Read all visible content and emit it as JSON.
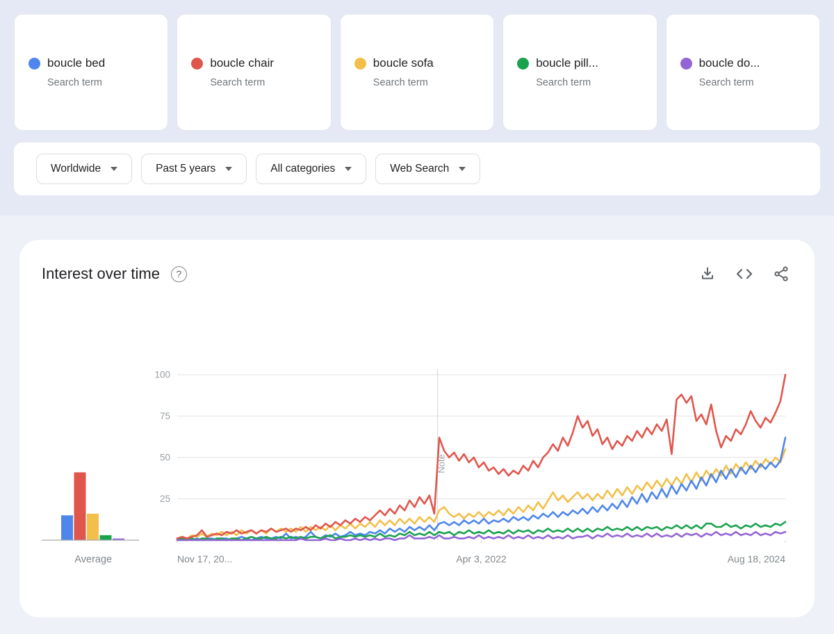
{
  "terms": {
    "cards": [
      {
        "label": "boucle bed",
        "sublabel": "Search term",
        "color": "#4e86ec"
      },
      {
        "label": "boucle chair",
        "sublabel": "Search term",
        "color": "#e0564d"
      },
      {
        "label": "boucle sofa",
        "sublabel": "Search term",
        "color": "#f2c04a"
      },
      {
        "label": "boucle pill...",
        "sublabel": "Search term",
        "color": "#1ba24f"
      },
      {
        "label": "boucle do...",
        "sublabel": "Search term",
        "color": "#9466d5"
      }
    ]
  },
  "filters": [
    {
      "label": "Worldwide"
    },
    {
      "label": "Past 5 years"
    },
    {
      "label": "All categories"
    },
    {
      "label": "Web Search"
    }
  ],
  "icons": {
    "help": "?"
  },
  "chart_data": {
    "type": "line",
    "title": "Interest over time",
    "x_axis": {
      "ticks": [
        "Nov 17, 20...",
        "Apr 3, 2022",
        "Aug 18, 2024"
      ]
    },
    "y_axis": {
      "ticks": [
        100,
        75,
        50,
        25
      ],
      "range": [
        0,
        100
      ],
      "grid": true
    },
    "note_annotation": {
      "x_fraction": 0.428,
      "label": "Note"
    },
    "average": {
      "label": "Average"
    },
    "series": [
      {
        "name": "boucle bed",
        "color": "#4e86ec",
        "average": 15,
        "values": [
          1,
          0,
          1,
          0,
          1,
          0,
          1,
          1,
          0,
          1,
          1,
          0,
          1,
          2,
          1,
          0,
          1,
          2,
          1,
          1,
          2,
          1,
          4,
          1,
          2,
          1,
          2,
          5,
          2,
          1,
          3,
          2,
          4,
          2,
          3,
          5,
          3,
          4,
          3,
          5,
          4,
          6,
          4,
          7,
          5,
          7,
          5,
          8,
          6,
          8,
          6,
          9,
          6,
          10,
          11,
          9,
          11,
          9,
          12,
          10,
          12,
          10,
          13,
          10,
          12,
          11,
          13,
          11,
          14,
          12,
          14,
          12,
          15,
          13,
          16,
          14,
          17,
          14,
          17,
          15,
          18,
          16,
          19,
          16,
          20,
          17,
          21,
          18,
          22,
          19,
          24,
          20,
          26,
          22,
          28,
          23,
          29,
          25,
          31,
          26,
          33,
          28,
          34,
          30,
          36,
          31,
          38,
          33,
          40,
          35,
          42,
          37,
          43,
          38,
          44,
          40,
          45,
          41,
          46,
          43,
          47,
          44,
          48,
          62
        ]
      },
      {
        "name": "boucle chair",
        "color": "#e0564d",
        "average": 41,
        "values": [
          1,
          2,
          1,
          2,
          3,
          6,
          2,
          3,
          4,
          3,
          5,
          4,
          6,
          4,
          5,
          6,
          4,
          6,
          5,
          7,
          5,
          6,
          7,
          5,
          7,
          6,
          8,
          6,
          9,
          7,
          10,
          8,
          11,
          9,
          12,
          10,
          13,
          11,
          14,
          12,
          15,
          18,
          15,
          19,
          16,
          21,
          18,
          24,
          20,
          26,
          22,
          27,
          16,
          62,
          54,
          50,
          53,
          48,
          52,
          47,
          50,
          44,
          47,
          42,
          44,
          40,
          43,
          39,
          42,
          40,
          45,
          42,
          48,
          44,
          50,
          53,
          58,
          54,
          62,
          57,
          65,
          75,
          68,
          72,
          63,
          67,
          58,
          62,
          55,
          60,
          57,
          63,
          60,
          66,
          62,
          68,
          64,
          70,
          66,
          73,
          52,
          85,
          88,
          83,
          87,
          72,
          76,
          70,
          82,
          66,
          56,
          63,
          60,
          67,
          64,
          70,
          78,
          72,
          68,
          74,
          71,
          77,
          84,
          100
        ]
      },
      {
        "name": "boucle sofa",
        "color": "#f2c04a",
        "average": 16,
        "values": [
          1,
          2,
          1,
          3,
          2,
          4,
          2,
          4,
          3,
          5,
          3,
          5,
          3,
          6,
          4,
          6,
          4,
          6,
          4,
          7,
          5,
          7,
          5,
          7,
          5,
          8,
          5,
          8,
          6,
          8,
          6,
          9,
          6,
          9,
          7,
          10,
          7,
          10,
          8,
          11,
          8,
          12,
          9,
          12,
          9,
          13,
          10,
          13,
          10,
          14,
          11,
          14,
          11,
          18,
          20,
          16,
          14,
          16,
          13,
          16,
          14,
          17,
          14,
          17,
          15,
          18,
          15,
          19,
          16,
          20,
          17,
          21,
          18,
          23,
          19,
          24,
          29,
          24,
          27,
          23,
          26,
          29,
          25,
          28,
          24,
          28,
          25,
          30,
          26,
          31,
          27,
          32,
          28,
          33,
          30,
          35,
          31,
          36,
          32,
          37,
          33,
          38,
          34,
          40,
          35,
          41,
          36,
          42,
          38,
          43,
          39,
          45,
          40,
          46,
          42,
          47,
          43,
          48,
          44,
          49,
          46,
          50,
          47,
          55
        ]
      },
      {
        "name": "boucle pill...",
        "color": "#1ba24f",
        "average": 3,
        "values": [
          0,
          1,
          0,
          1,
          0,
          1,
          1,
          0,
          1,
          1,
          0,
          1,
          1,
          0,
          1,
          2,
          1,
          1,
          2,
          1,
          1,
          2,
          1,
          2,
          1,
          2,
          1,
          2,
          2,
          1,
          2,
          3,
          1,
          2,
          2,
          3,
          2,
          3,
          2,
          3,
          2,
          4,
          2,
          3,
          2,
          4,
          3,
          5,
          3,
          4,
          3,
          5,
          3,
          5,
          4,
          5,
          3,
          5,
          4,
          6,
          4,
          5,
          4,
          6,
          4,
          5,
          4,
          6,
          4,
          6,
          5,
          6,
          4,
          6,
          5,
          7,
          5,
          6,
          5,
          7,
          5,
          7,
          5,
          7,
          5,
          7,
          6,
          8,
          6,
          7,
          6,
          8,
          6,
          8,
          6,
          8,
          7,
          8,
          6,
          8,
          7,
          9,
          7,
          9,
          7,
          9,
          7,
          10,
          10,
          8,
          8,
          10,
          8,
          9,
          7,
          9,
          8,
          10,
          8,
          9,
          8,
          10,
          9,
          11
        ]
      },
      {
        "name": "boucle do...",
        "color": "#9466d5",
        "average": 1,
        "values": [
          0,
          0,
          0,
          0,
          0,
          0,
          0,
          0,
          0,
          0,
          0,
          0,
          0,
          0,
          0,
          0,
          0,
          0,
          0,
          0,
          0,
          0,
          0,
          0,
          0,
          1,
          0,
          0,
          0,
          0,
          1,
          0,
          0,
          1,
          0,
          0,
          1,
          0,
          1,
          0,
          1,
          0,
          1,
          1,
          0,
          1,
          1,
          3,
          1,
          1,
          1,
          2,
          1,
          3,
          1,
          1,
          2,
          1,
          1,
          2,
          1,
          3,
          1,
          2,
          1,
          2,
          1,
          3,
          1,
          2,
          1,
          3,
          1,
          2,
          1,
          3,
          1,
          2,
          1,
          3,
          1,
          2,
          2,
          3,
          1,
          3,
          2,
          4,
          2,
          3,
          2,
          4,
          2,
          3,
          2,
          4,
          2,
          4,
          2,
          3,
          2,
          4,
          2,
          4,
          3,
          4,
          2,
          4,
          3,
          5,
          3,
          4,
          3,
          5,
          3,
          4,
          3,
          5,
          3,
          4,
          3,
          5,
          4,
          5
        ]
      }
    ]
  }
}
